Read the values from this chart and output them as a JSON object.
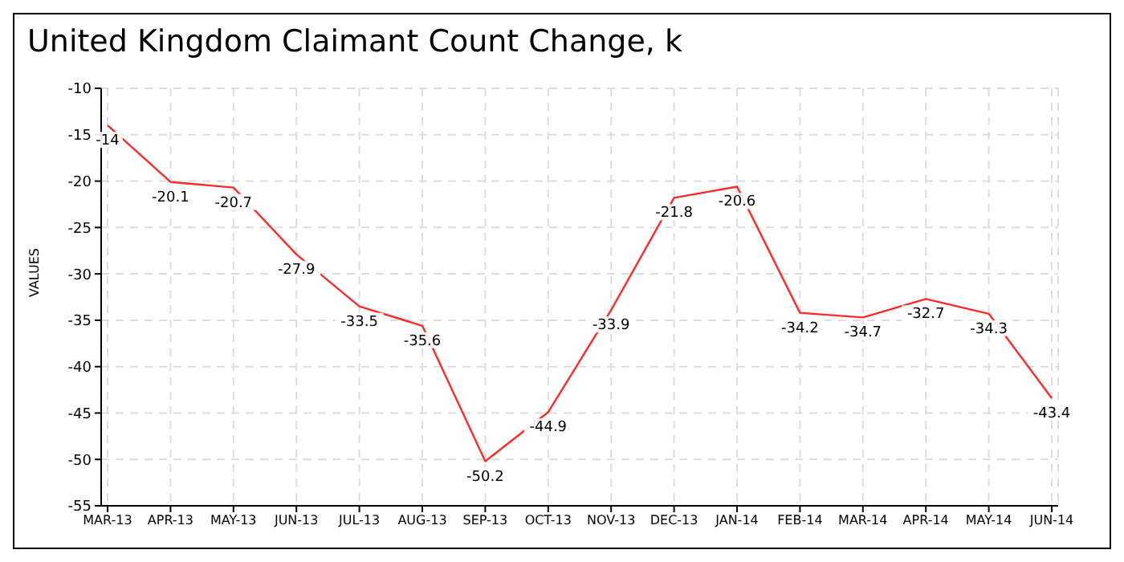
{
  "chart_data": {
    "type": "line",
    "title": "United Kingdom Claimant Count Change, k",
    "ylabel": "VALUES",
    "categories": [
      "MAR-13",
      "APR-13",
      "MAY-13",
      "JUN-13",
      "JUL-13",
      "AUG-13",
      "SEP-13",
      "OCT-13",
      "NOV-13",
      "DEC-13",
      "JAN-14",
      "FEB-14",
      "MAR-14",
      "APR-14",
      "MAY-14",
      "JUN-14"
    ],
    "series": [
      {
        "color": "#ff2a2a",
        "values": [
          -14,
          -20.1,
          -20.7,
          -27.9,
          -33.5,
          -35.6,
          -50.2,
          -44.9,
          -33.9,
          -21.8,
          -20.6,
          -34.2,
          -34.7,
          -32.7,
          -34.3,
          -43.4
        ]
      }
    ],
    "ylim": [
      -55,
      -10
    ],
    "yticks": [
      -55,
      -50,
      -45,
      -40,
      -35,
      -30,
      -25,
      -20,
      -15,
      -10
    ],
    "grid": true,
    "marker": "none",
    "line_style": "solid",
    "data_labels": true
  }
}
